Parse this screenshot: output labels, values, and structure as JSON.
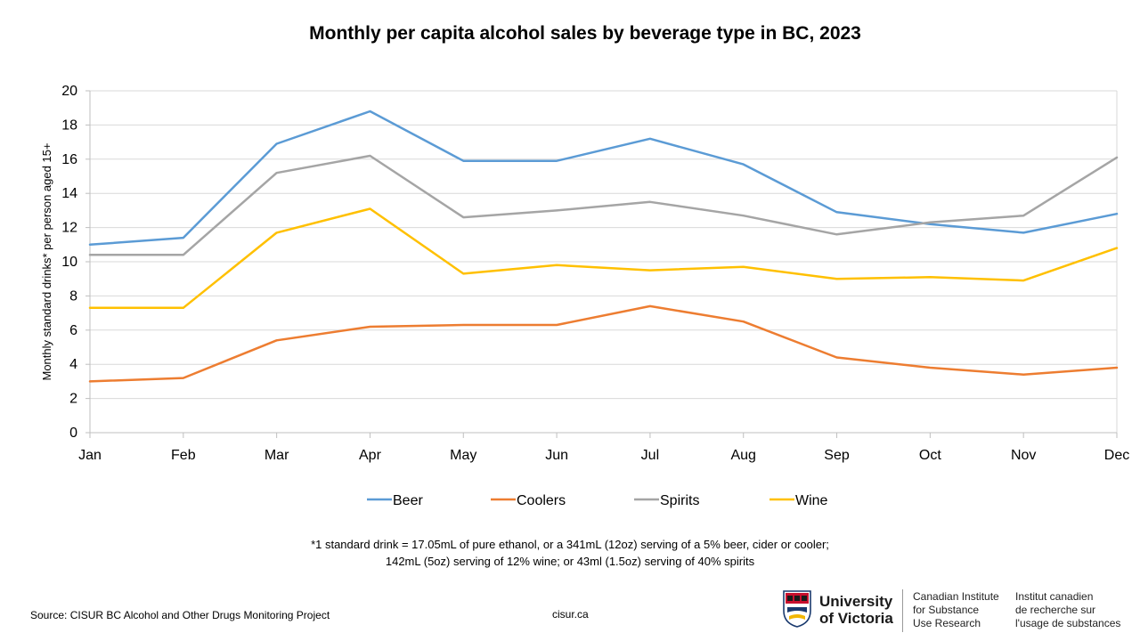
{
  "chart_data": {
    "type": "line",
    "title": "Monthly per capita alcohol sales by beverage type in BC, 2023",
    "ylabel": "Monthly standard drinks* per person aged 15+",
    "xlabel": "",
    "categories": [
      "Jan",
      "Feb",
      "Mar",
      "Apr",
      "May",
      "Jun",
      "Jul",
      "Aug",
      "Sep",
      "Oct",
      "Nov",
      "Dec"
    ],
    "ylim": [
      0,
      20
    ],
    "yticks": [
      "0",
      "2",
      "4",
      "6",
      "8",
      "10",
      "12",
      "14",
      "16",
      "18",
      "20"
    ],
    "grid": true,
    "legend_position": "bottom",
    "series": [
      {
        "name": "Beer",
        "color": "#5B9BD5",
        "values": [
          11.0,
          11.4,
          16.9,
          18.8,
          15.9,
          15.9,
          17.2,
          15.7,
          12.9,
          12.2,
          11.7,
          12.8
        ]
      },
      {
        "name": "Coolers",
        "color": "#ED7D31",
        "values": [
          3.0,
          3.2,
          5.4,
          6.2,
          6.3,
          6.3,
          7.4,
          6.5,
          4.4,
          3.8,
          3.4,
          3.8
        ]
      },
      {
        "name": "Spirits",
        "color": "#A5A5A5",
        "values": [
          10.4,
          10.4,
          15.2,
          16.2,
          12.6,
          13.0,
          13.5,
          12.7,
          11.6,
          12.3,
          12.7,
          16.1
        ]
      },
      {
        "name": "Wine",
        "color": "#FFC000",
        "values": [
          7.3,
          7.3,
          11.7,
          13.1,
          9.3,
          9.8,
          9.5,
          9.7,
          9.0,
          9.1,
          8.9,
          10.8
        ]
      }
    ]
  },
  "footnote": {
    "line1": "*1 standard drink = 17.05mL of pure ethanol, or a 341mL (12oz) serving of a 5% beer, cider or cooler;",
    "line2": "142mL (5oz) serving of 12% wine; or 43ml (1.5oz) serving of 40% spirits"
  },
  "source": "Source: CISUR BC Alcohol and Other Drugs Monitoring Project",
  "site": "cisur.ca",
  "logo": {
    "university_line1": "University",
    "university_line2": "of Victoria",
    "english_line1": "Canadian Institute",
    "english_line2": "for Substance",
    "english_line3": "Use Research",
    "french_line1": "Institut canadien",
    "french_line2": "de recherche sur",
    "french_line3": "l'usage de substances"
  }
}
